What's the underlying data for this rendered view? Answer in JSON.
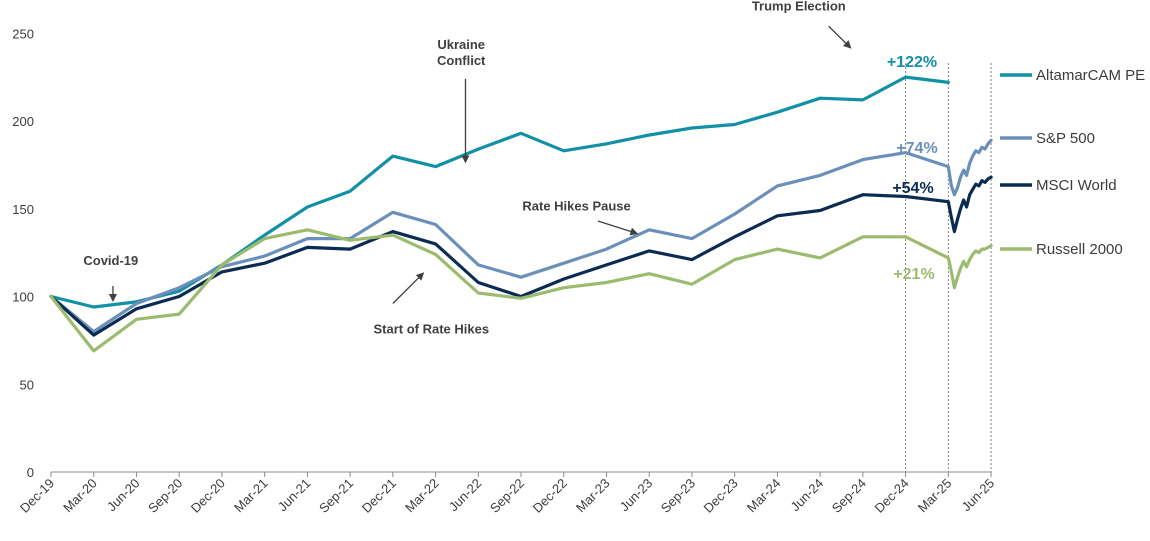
{
  "chart_data": {
    "type": "line",
    "ylim": [
      0,
      250
    ],
    "yticks": [
      "0",
      "50",
      "100",
      "150",
      "200",
      "250"
    ],
    "x_labels": [
      "Dec-19",
      "Mar-20",
      "Jun-20",
      "Sep-20",
      "Dec-20",
      "Mar-21",
      "Jun-21",
      "Sep-21",
      "Dec-21",
      "Mar-22",
      "Jun-22",
      "Sep-22",
      "Dec-22",
      "Mar-23",
      "Jun-23",
      "Sep-23",
      "Dec-23",
      "Mar-24",
      "Jun-24",
      "Sep-24",
      "Dec-24",
      "Mar-25",
      "Jun-25"
    ],
    "grid": false,
    "legend_position": "right",
    "series": [
      {
        "name": "AltamarCAM PE",
        "color": "#1190a6",
        "label": "+122%",
        "values": [
          100,
          94,
          97,
          103,
          118,
          135,
          151,
          160,
          180,
          174,
          184,
          193,
          183,
          187,
          192,
          196,
          198,
          205,
          213,
          212,
          225,
          222,
          null
        ]
      },
      {
        "name": "S&P 500",
        "color": "#6b8fbb",
        "label": "+74%",
        "values": [
          100,
          80,
          96,
          105,
          117,
          123,
          133,
          133,
          148,
          141,
          118,
          111,
          119,
          127,
          138,
          133,
          147,
          163,
          169,
          178,
          182,
          174,
          189
        ]
      },
      {
        "name": "MSCI World",
        "color": "#0b2b52",
        "label": "+54%",
        "values": [
          100,
          78,
          93,
          100,
          114,
          119,
          128,
          127,
          137,
          130,
          108,
          100,
          110,
          118,
          126,
          121,
          134,
          146,
          149,
          158,
          157,
          154,
          168
        ]
      },
      {
        "name": "Russell 2000",
        "color": "#9bbb6e",
        "label": "+21%",
        "values": [
          100,
          69,
          87,
          90,
          118,
          133,
          138,
          132,
          135,
          124,
          102,
          99,
          105,
          108,
          113,
          107,
          121,
          127,
          122,
          134,
          134,
          122,
          129
        ]
      }
    ],
    "daily_tail_from_mar25": {
      "S&P 500": [
        174,
        163,
        158,
        162,
        168,
        172,
        169,
        176,
        180,
        183,
        182,
        185,
        184,
        187,
        189
      ],
      "MSCI World": [
        154,
        145,
        137,
        144,
        150,
        155,
        151,
        158,
        161,
        164,
        163,
        166,
        165,
        167,
        168
      ],
      "Russell 2000": [
        122,
        114,
        105,
        111,
        116,
        120,
        117,
        121,
        124,
        126,
        125,
        127,
        127,
        128,
        129
      ]
    },
    "annotations": [
      {
        "text": "Covid-19",
        "x": 1.4,
        "y": 118
      },
      {
        "text": "Ukraine",
        "x": 9.6,
        "y": 241
      },
      {
        "text": "Conflict",
        "x": 9.6,
        "y": 232
      },
      {
        "text": "Start of Rate Hikes",
        "x": 8.9,
        "y": 79
      },
      {
        "text": "Rate Hikes Pause",
        "x": 12.3,
        "y": 149
      },
      {
        "text": "Trump Election",
        "x": 17.5,
        "y": 263
      }
    ],
    "arrows": [
      {
        "from": [
          1.45,
          106
        ],
        "to": [
          1.45,
          98
        ]
      },
      {
        "from": [
          9.7,
          224
        ],
        "to": [
          9.7,
          177
        ]
      },
      {
        "from": [
          8.0,
          96
        ],
        "to": [
          8.7,
          113
        ]
      },
      {
        "from": [
          12.8,
          143
        ],
        "to": [
          13.7,
          136
        ]
      },
      {
        "from": [
          18.2,
          254
        ],
        "to": [
          18.7,
          242
        ]
      }
    ],
    "reference_lines": [
      20,
      21,
      22
    ]
  }
}
